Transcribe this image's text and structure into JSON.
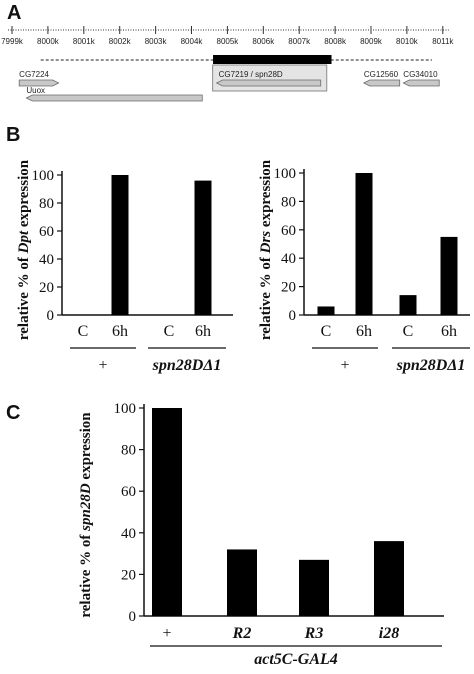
{
  "panels": {
    "a": "A",
    "b": "B",
    "c": "C"
  },
  "colors": {
    "bar": "#000000",
    "gene": "#c8c8c8",
    "gene_stroke": "#6a6a6a",
    "axis": "#111111",
    "highlight_box": "#8a8a8a"
  },
  "genome_map": {
    "positions": [
      "7999k",
      "8000k",
      "8001k",
      "8002k",
      "8003k",
      "8004k",
      "8005k",
      "8006k",
      "8007k",
      "8008k",
      "8009k",
      "8010k",
      "8011k"
    ],
    "region_start": "8004.6k",
    "region_end": "8007.9k",
    "genes": [
      {
        "name": "CG7224",
        "start": 7999.2,
        "end": 8000.3,
        "strand": "+"
      },
      {
        "name": "Uuox",
        "start": 7999.4,
        "end": 8004.3,
        "strand": "-"
      },
      {
        "name": "CG7219 / spn28D",
        "start": 8004.7,
        "end": 8007.6,
        "strand": "-",
        "highlight": true
      },
      {
        "name": "CG12560",
        "start": 8008.8,
        "end": 8009.8,
        "strand": "-"
      },
      {
        "name": "CG34010",
        "start": 8009.9,
        "end": 8010.9,
        "strand": "-"
      }
    ]
  },
  "chart_data": [
    {
      "type": "bar",
      "panel": "B",
      "ylabel_prefix": "relative % of ",
      "ylabel_gene": "Dpt",
      "ylabel_suffix": " expression",
      "ylim": [
        0,
        100
      ],
      "yticks": [
        "0",
        "20",
        "40",
        "60",
        "80",
        "100"
      ],
      "categories": [
        "C",
        "6h",
        "C",
        "6h"
      ],
      "groups": [
        "+",
        "spn28DΔ1"
      ],
      "values": [
        0,
        100,
        0,
        96
      ]
    },
    {
      "type": "bar",
      "panel": "B",
      "ylabel_prefix": "relative % of ",
      "ylabel_gene": "Drs",
      "ylabel_suffix": " expression",
      "ylim": [
        0,
        100
      ],
      "yticks": [
        "0",
        "20",
        "40",
        "60",
        "80",
        "100"
      ],
      "categories": [
        "C",
        "6h",
        "C",
        "6h"
      ],
      "groups": [
        "+",
        "spn28DΔ1"
      ],
      "values": [
        6,
        100,
        14,
        55
      ]
    },
    {
      "type": "bar",
      "panel": "C",
      "ylabel_prefix": "relative % of ",
      "ylabel_gene": "spn28D",
      "ylabel_suffix": " expression",
      "ylim": [
        0,
        100
      ],
      "yticks": [
        "0",
        "20",
        "40",
        "60",
        "80",
        "100"
      ],
      "categories": [
        "+",
        "R2",
        "R3",
        "i28"
      ],
      "groups": [
        "act5C-GAL4"
      ],
      "values": [
        100,
        32,
        27,
        36
      ]
    }
  ]
}
